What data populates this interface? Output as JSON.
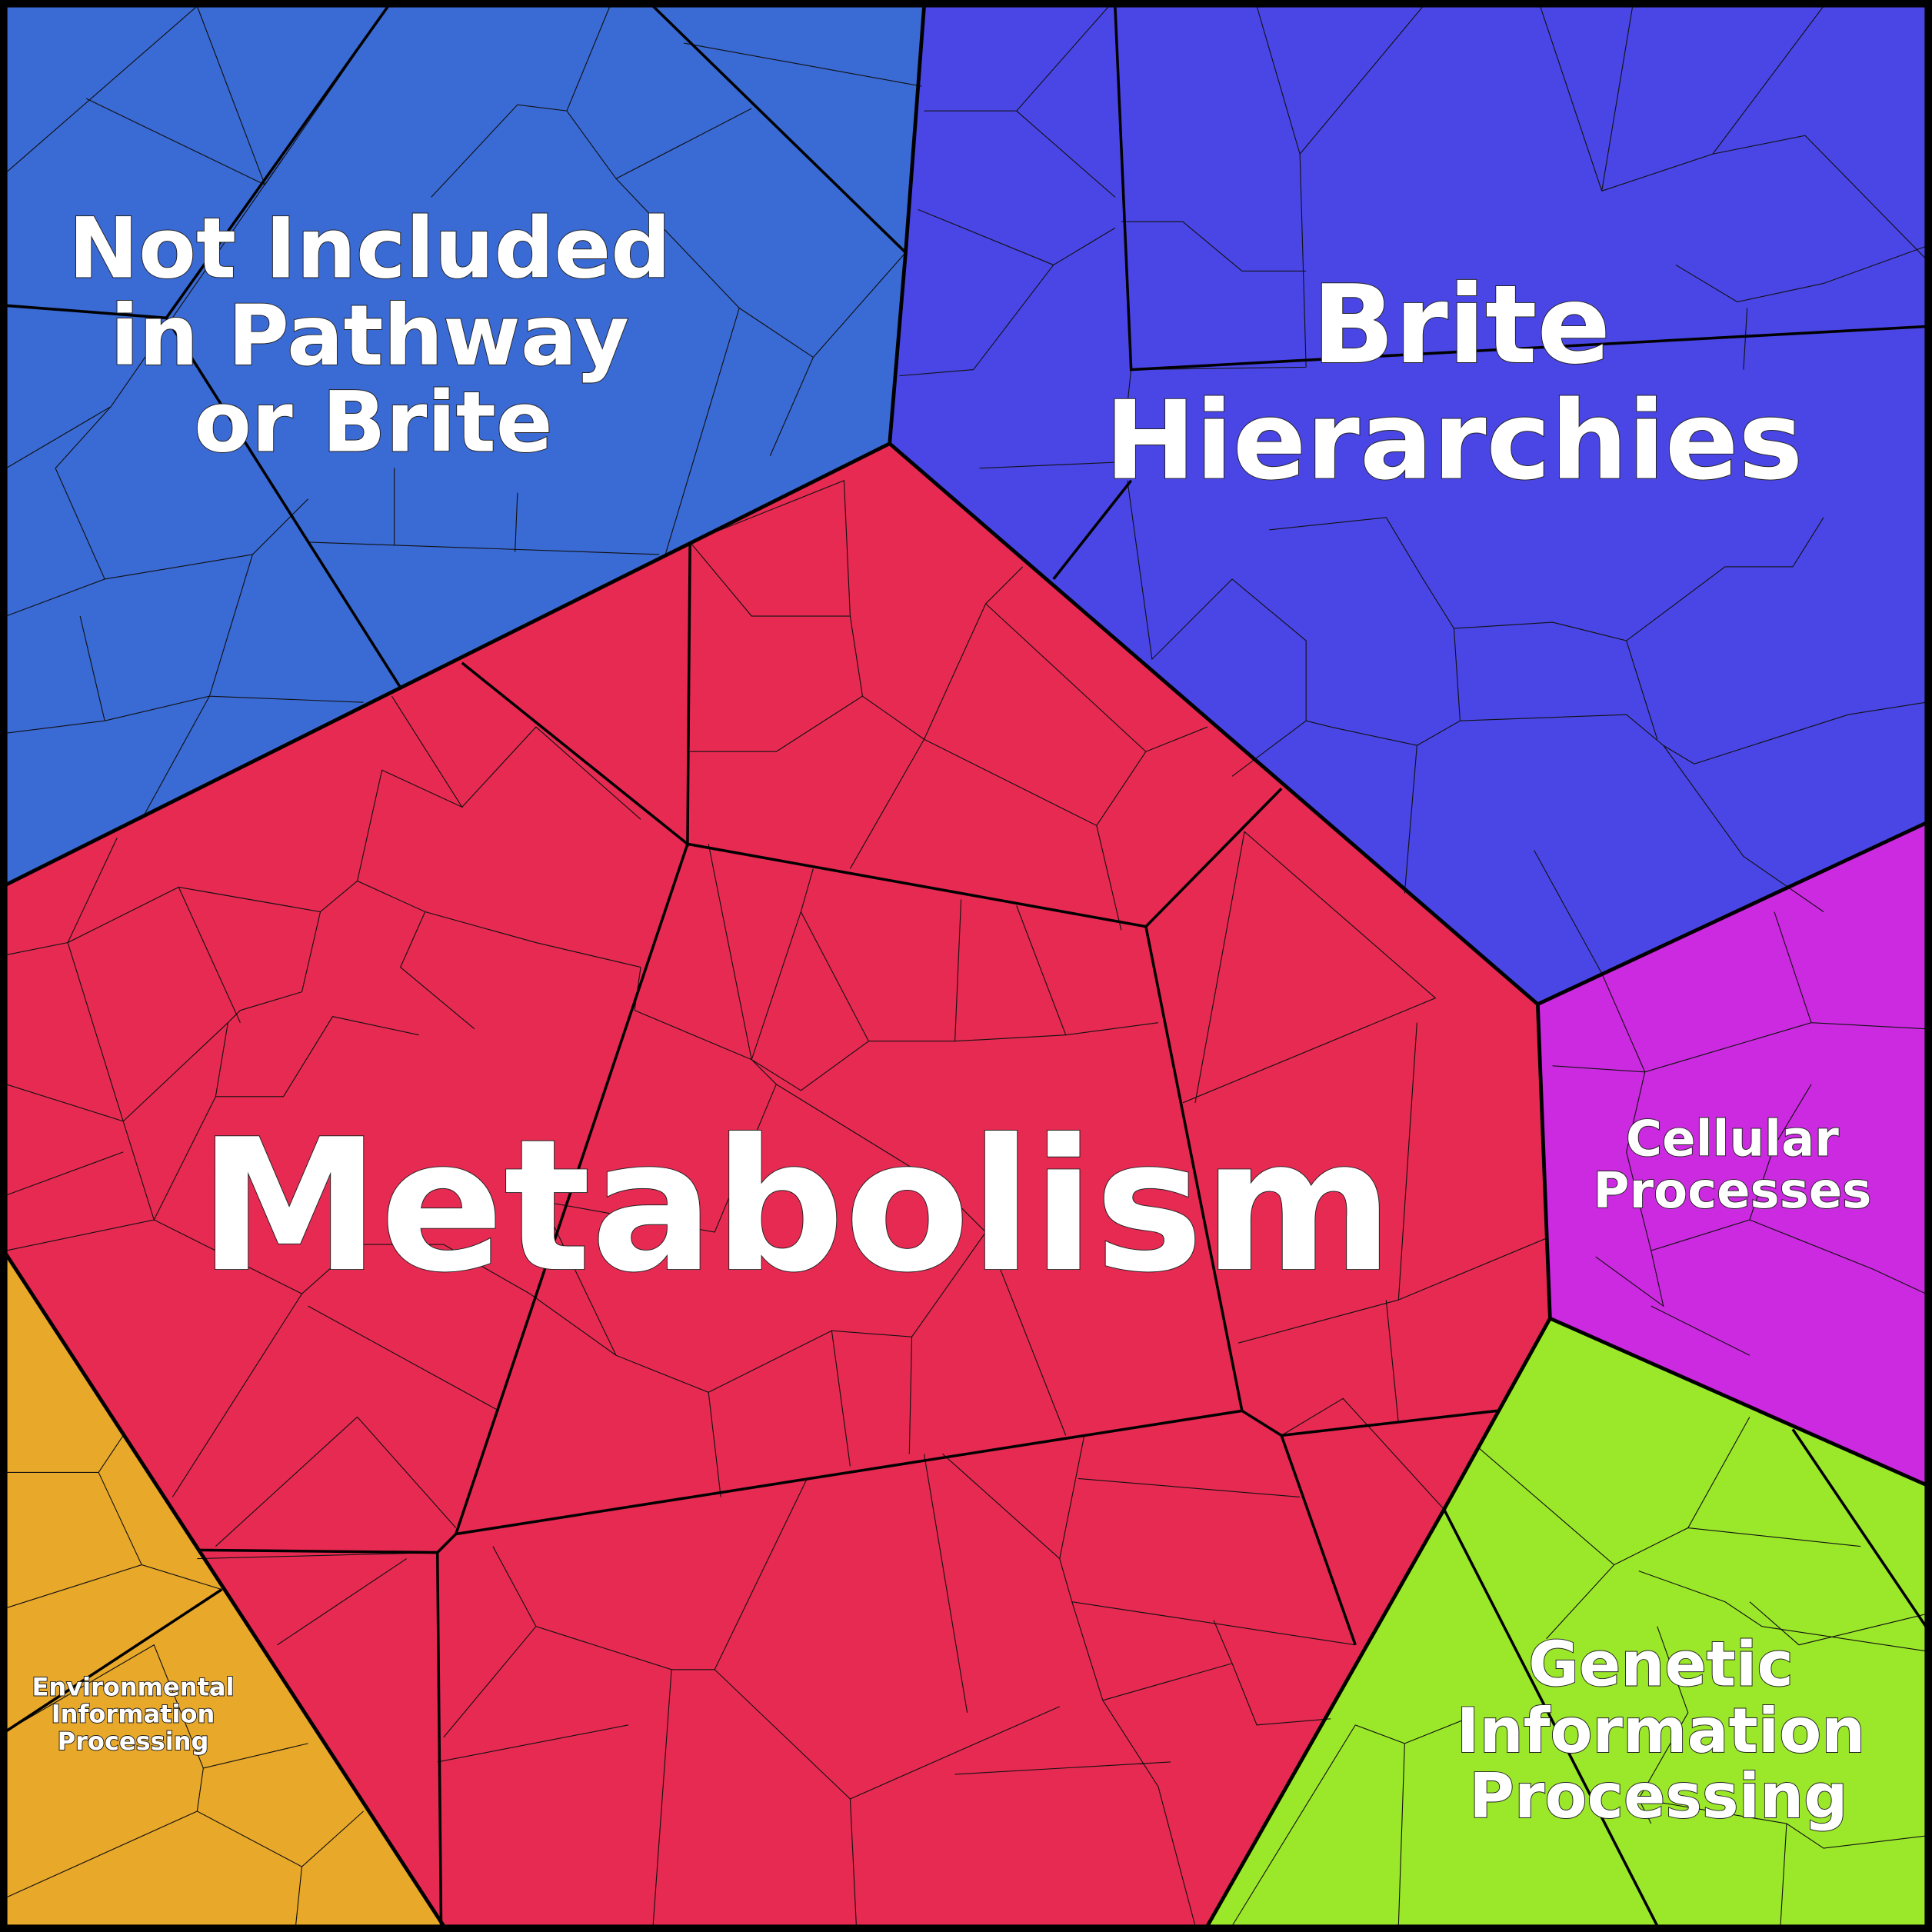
{
  "regions": [
    {
      "lines": [
        "Not Included",
        "in Pathway",
        "or Brite"
      ]
    },
    {
      "lines": [
        "Brite",
        "Hierarchies"
      ]
    },
    {
      "lines": [
        "Metabolism"
      ]
    },
    {
      "lines": [
        "Cellular",
        "Processes"
      ]
    },
    {
      "lines": [
        "Genetic",
        "Information",
        "Processing"
      ]
    },
    {
      "lines": [
        "Environmental",
        "Information",
        "Processing"
      ]
    }
  ]
}
